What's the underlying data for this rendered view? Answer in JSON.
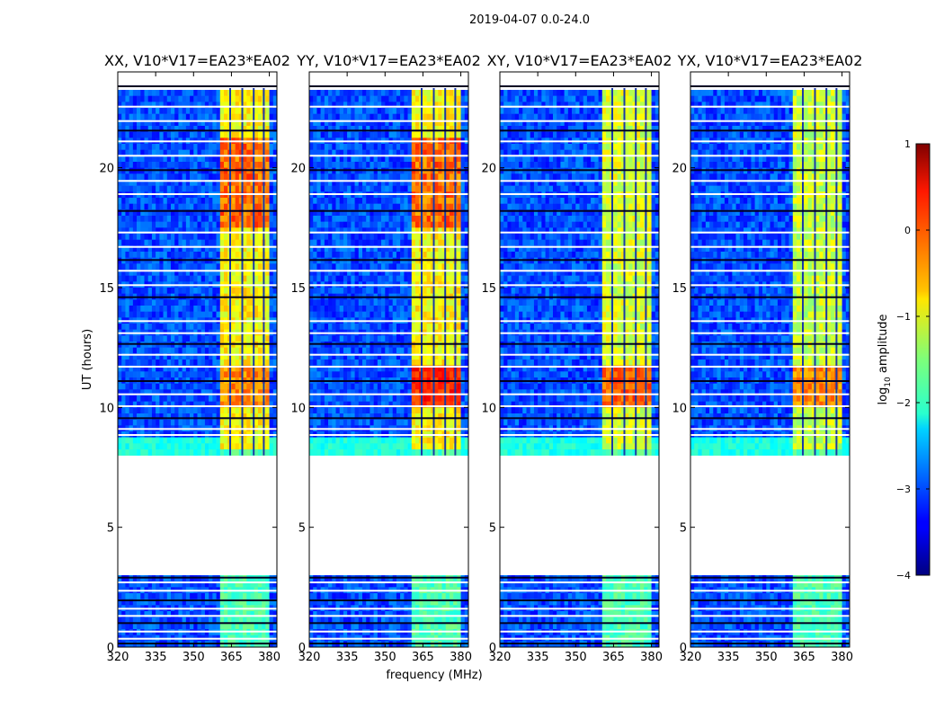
{
  "chart_data": {
    "type": "heatmap",
    "suptitle": "2019-04-07 0.0-24.0",
    "xlabel": "frequency (MHz)",
    "ylabel": "UT (hours)",
    "xlim": [
      320,
      383
    ],
    "ylim": [
      0,
      24
    ],
    "xticks": [
      320,
      335,
      350,
      365,
      380
    ],
    "xtick_labels": [
      "320",
      "335",
      "350",
      "365",
      "380"
    ],
    "yticks": [
      0,
      5,
      10,
      15,
      20
    ],
    "ytick_labels": [
      "0",
      "5",
      "10",
      "15",
      "20"
    ],
    "panels": [
      {
        "title": "XX, V10*V17=EA23*EA02",
        "band_level": -1.0,
        "peak_level": 0.0
      },
      {
        "title": "YY, V10*V17=EA23*EA02",
        "band_level": -1.0,
        "peak_level": 0.5
      },
      {
        "title": "XY, V10*V17=EA23*EA02",
        "band_level": -1.2,
        "peak_level": 0.2
      },
      {
        "title": "YX, V10*V17=EA23*EA02",
        "band_level": -1.3,
        "peak_level": 0.0
      }
    ],
    "band_mhz": [
      361,
      380
    ],
    "background_level": -3.0,
    "data_gap_hours": [
      2.95,
      8.0
    ],
    "colorbar": {
      "label_prefix": "log",
      "label_subscript": "10",
      "label_suffix": " amplitude",
      "range": [
        -4,
        1
      ],
      "ticks": [
        1,
        0,
        -1,
        -2,
        -3,
        -4
      ],
      "tick_labels": [
        "1",
        "0",
        "−1",
        "−2",
        "−3",
        "−4"
      ],
      "colormap": "jet"
    }
  }
}
